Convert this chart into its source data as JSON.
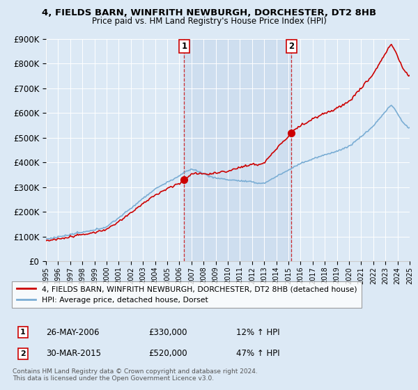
{
  "title": "4, FIELDS BARN, WINFRITH NEWBURGH, DORCHESTER, DT2 8HB",
  "subtitle": "Price paid vs. HM Land Registry's House Price Index (HPI)",
  "ylim": [
    0,
    900000
  ],
  "yticks": [
    0,
    100000,
    200000,
    300000,
    400000,
    500000,
    600000,
    700000,
    800000,
    900000
  ],
  "ytick_labels": [
    "£0",
    "£100K",
    "£200K",
    "£300K",
    "£400K",
    "£500K",
    "£600K",
    "£700K",
    "£800K",
    "£900K"
  ],
  "background_color": "#dce9f5",
  "plot_bg_color": "#dce9f5",
  "sale1_year": 2006.4,
  "sale1_price": 330000,
  "sale1_label": "1",
  "sale1_date": "26-MAY-2006",
  "sale1_hpi": "12% ↑ HPI",
  "sale2_year": 2015.25,
  "sale2_price": 520000,
  "sale2_label": "2",
  "sale2_date": "30-MAR-2015",
  "sale2_hpi": "47% ↑ HPI",
  "red_line_color": "#cc0000",
  "blue_line_color": "#7aadd4",
  "shade_color": "#c5d8ec",
  "legend_label_red": "4, FIELDS BARN, WINFRITH NEWBURGH, DORCHESTER, DT2 8HB (detached house)",
  "legend_label_blue": "HPI: Average price, detached house, Dorset",
  "footer1": "Contains HM Land Registry data © Crown copyright and database right 2024.",
  "footer2": "This data is licensed under the Open Government Licence v3.0.",
  "xmin": 1995,
  "xmax": 2025
}
